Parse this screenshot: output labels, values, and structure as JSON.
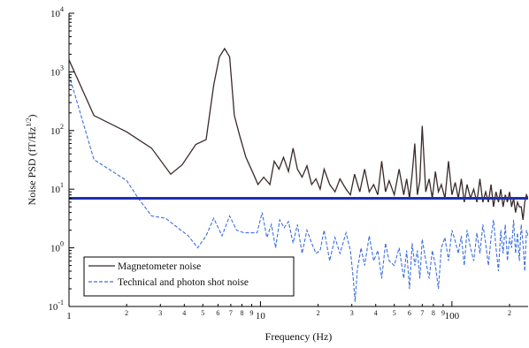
{
  "chart_data": {
    "type": "line",
    "title": "",
    "xlabel": "Frequency (Hz)",
    "ylabel": "Noise PSD (fT/Hz¹ᐟ²)",
    "ylabel_main": "Noise PSD (fT/Hz",
    "ylabel_sup": "1/2",
    "ylabel_close": ")",
    "x_scale": "log",
    "y_scale": "log",
    "xlim": [
      1,
      250
    ],
    "ylim": [
      0.1,
      10000
    ],
    "grid": false,
    "legend_position": "bottom-left",
    "x_major_ticks": [
      {
        "value": 1,
        "label": "1"
      },
      {
        "value": 10,
        "label": "10"
      },
      {
        "value": 100,
        "label": "100"
      }
    ],
    "x_minor_ticks": [
      {
        "value": 2,
        "label": "2"
      },
      {
        "value": 3,
        "label": "3"
      },
      {
        "value": 4,
        "label": "4"
      },
      {
        "value": 5,
        "label": "5"
      },
      {
        "value": 6,
        "label": "6"
      },
      {
        "value": 7,
        "label": "7"
      },
      {
        "value": 8,
        "label": "8"
      },
      {
        "value": 9,
        "label": "9"
      },
      {
        "value": 20,
        "label": "2"
      },
      {
        "value": 30,
        "label": "3"
      },
      {
        "value": 40,
        "label": "4"
      },
      {
        "value": 50,
        "label": "5"
      },
      {
        "value": 60,
        "label": "6"
      },
      {
        "value": 70,
        "label": "7"
      },
      {
        "value": 80,
        "label": "8"
      },
      {
        "value": 90,
        "label": "9"
      },
      {
        "value": 200,
        "label": "2"
      }
    ],
    "y_major_ticks": [
      {
        "value": 0.1,
        "base": "10",
        "exp": "-1"
      },
      {
        "value": 1,
        "base": "10",
        "exp": "0"
      },
      {
        "value": 10,
        "base": "10",
        "exp": "1"
      },
      {
        "value": 100,
        "base": "10",
        "exp": "2"
      },
      {
        "value": 1000,
        "base": "10",
        "exp": "3"
      },
      {
        "value": 10000,
        "base": "10",
        "exp": "4"
      }
    ],
    "reference_line": {
      "y": 7.0,
      "color": "#1f2fb0"
    },
    "series": [
      {
        "name": "Magnetometer noise",
        "color": "#3a2a2a",
        "dash": "solid",
        "x": [
          1.0,
          1.35,
          2.0,
          2.7,
          3.4,
          3.9,
          4.6,
          5.2,
          5.7,
          6.1,
          6.5,
          6.9,
          7.3,
          7.8,
          8.4,
          9.2,
          9.7,
          10.4,
          11.2,
          11.8,
          12.5,
          13.2,
          14.0,
          14.8,
          15.6,
          16.5,
          17.5,
          18.5,
          19.5,
          20.5,
          21.5,
          23,
          24.5,
          26,
          28,
          29.5,
          31,
          33,
          35,
          37,
          39,
          41,
          43,
          45,
          47,
          50,
          53,
          56,
          58,
          60,
          62,
          64,
          66,
          68,
          70,
          73,
          76,
          79,
          82,
          85,
          88,
          92,
          96,
          100,
          104,
          108,
          112,
          116,
          120,
          125,
          130,
          135,
          140,
          145,
          150,
          155,
          160,
          165,
          170,
          175,
          180,
          185,
          190,
          195,
          200,
          205,
          210,
          215,
          220,
          225,
          230,
          235,
          240,
          245,
          250
        ],
        "y": [
          1600,
          180,
          95,
          50,
          18,
          26,
          58,
          70,
          600,
          1800,
          2500,
          1800,
          180,
          80,
          35,
          18,
          12,
          16,
          12,
          30,
          22,
          35,
          20,
          50,
          22,
          16,
          25,
          12,
          15,
          10,
          22,
          12,
          9,
          15,
          10,
          8,
          18,
          9,
          22,
          9,
          12,
          8,
          30,
          9,
          14,
          8,
          22,
          8,
          15,
          7,
          18,
          60,
          8,
          14,
          120,
          9,
          15,
          7,
          20,
          9,
          12,
          7,
          30,
          8,
          13,
          7,
          15,
          6,
          12,
          7,
          10,
          6,
          15,
          6,
          9,
          6,
          12,
          5,
          9,
          6,
          10,
          5,
          8,
          6,
          9,
          5,
          7,
          4,
          6,
          5,
          5,
          3,
          6,
          8,
          7
        ]
      },
      {
        "name": "Technical and photon shot noise",
        "color": "#3d6fe0",
        "dash": "dashed",
        "x": [
          1.0,
          1.35,
          2.0,
          2.3,
          2.7,
          3.2,
          3.7,
          4.2,
          4.7,
          5.2,
          5.7,
          6.3,
          6.9,
          7.5,
          8.2,
          9.0,
          9.6,
          10.2,
          10.8,
          11.4,
          12.0,
          12.6,
          13.3,
          14.0,
          14.8,
          15.6,
          16.5,
          17.5,
          18.5,
          19.5,
          20.5,
          21.5,
          23,
          24.5,
          26,
          28,
          29.5,
          30.5,
          31.2,
          32,
          33.5,
          35,
          37,
          39,
          41,
          43,
          45,
          47,
          50,
          53,
          56,
          58,
          60,
          62,
          64,
          66,
          68,
          70,
          73,
          76,
          79,
          82,
          85,
          88,
          92,
          96,
          100,
          104,
          108,
          112,
          116,
          120,
          125,
          130,
          135,
          140,
          145,
          150,
          155,
          160,
          165,
          170,
          175,
          180,
          185,
          190,
          195,
          200,
          205,
          210,
          215,
          220,
          225,
          230,
          235,
          240,
          245,
          250
        ],
        "y": [
          900,
          32,
          14,
          7,
          3.5,
          3.2,
          2.2,
          1.6,
          1.0,
          1.6,
          3.2,
          1.6,
          3.5,
          2.0,
          1.8,
          1.8,
          1.8,
          4.0,
          1.5,
          2.5,
          1.0,
          3.0,
          2.2,
          2.8,
          1.2,
          2.5,
          0.8,
          2.0,
          1.2,
          0.8,
          0.9,
          2.0,
          0.6,
          1.5,
          0.8,
          1.8,
          0.9,
          0.3,
          0.12,
          0.4,
          1.0,
          0.5,
          1.6,
          0.6,
          0.9,
          0.3,
          1.2,
          0.6,
          0.5,
          1.0,
          0.3,
          0.9,
          0.2,
          1.2,
          0.5,
          0.9,
          0.3,
          1.4,
          0.6,
          0.3,
          0.9,
          0.5,
          0.2,
          1.0,
          1.5,
          0.6,
          2.0,
          1.3,
          0.8,
          1.6,
          0.5,
          2.0,
          1.0,
          0.6,
          1.8,
          0.8,
          2.5,
          1.2,
          0.5,
          1.5,
          3.0,
          1.0,
          0.4,
          2.0,
          0.8,
          2.5,
          0.6,
          1.5,
          1.0,
          3.0,
          0.8,
          1.8,
          0.6,
          2.5,
          1.2,
          0.4,
          2.0,
          1.6
        ]
      }
    ]
  }
}
